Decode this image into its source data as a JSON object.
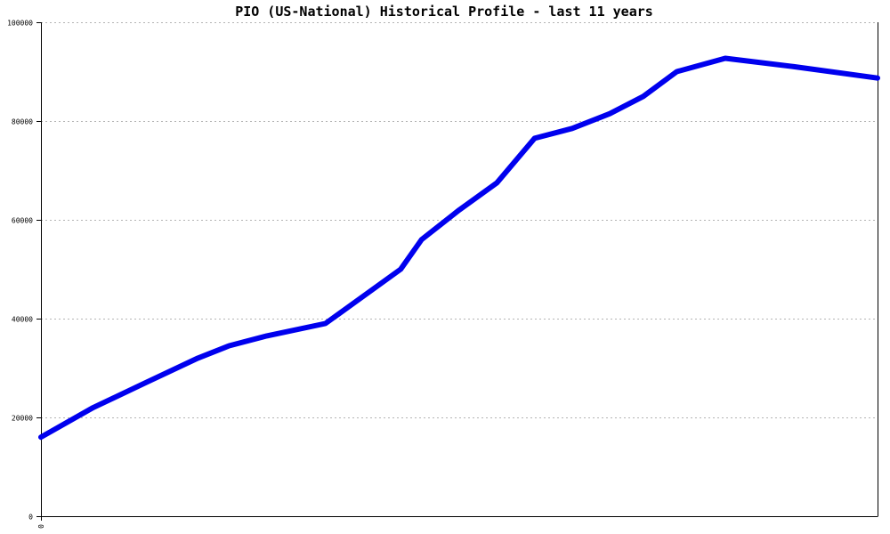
{
  "chart_data": {
    "type": "line",
    "title": "PIO (US-National) Historical Profile - last 11 years",
    "xlabel": "",
    "ylabel": "",
    "ylim": [
      0,
      100000
    ],
    "yticks": [
      0,
      20000,
      40000,
      60000,
      80000,
      100000
    ],
    "ytick_labels": [
      "0",
      "20000",
      "40000",
      "60000",
      "80000",
      "100000"
    ],
    "xtick_labels": [
      "0"
    ],
    "grid": true,
    "series_color": "#0000ee",
    "series": [
      {
        "x": [
          0,
          0.0625,
          0.125,
          0.1875,
          0.225,
          0.27,
          0.34,
          0.43,
          0.455,
          0.5,
          0.545,
          0.59,
          0.635,
          0.68,
          0.72,
          0.76,
          0.818,
          0.9,
          1.0
        ],
        "values": [
          16000,
          22000,
          27000,
          32000,
          34500,
          36500,
          39000,
          50000,
          56000,
          62000,
          67500,
          76500,
          78500,
          81500,
          85000,
          90000,
          92700,
          91000,
          88700
        ]
      }
    ]
  }
}
